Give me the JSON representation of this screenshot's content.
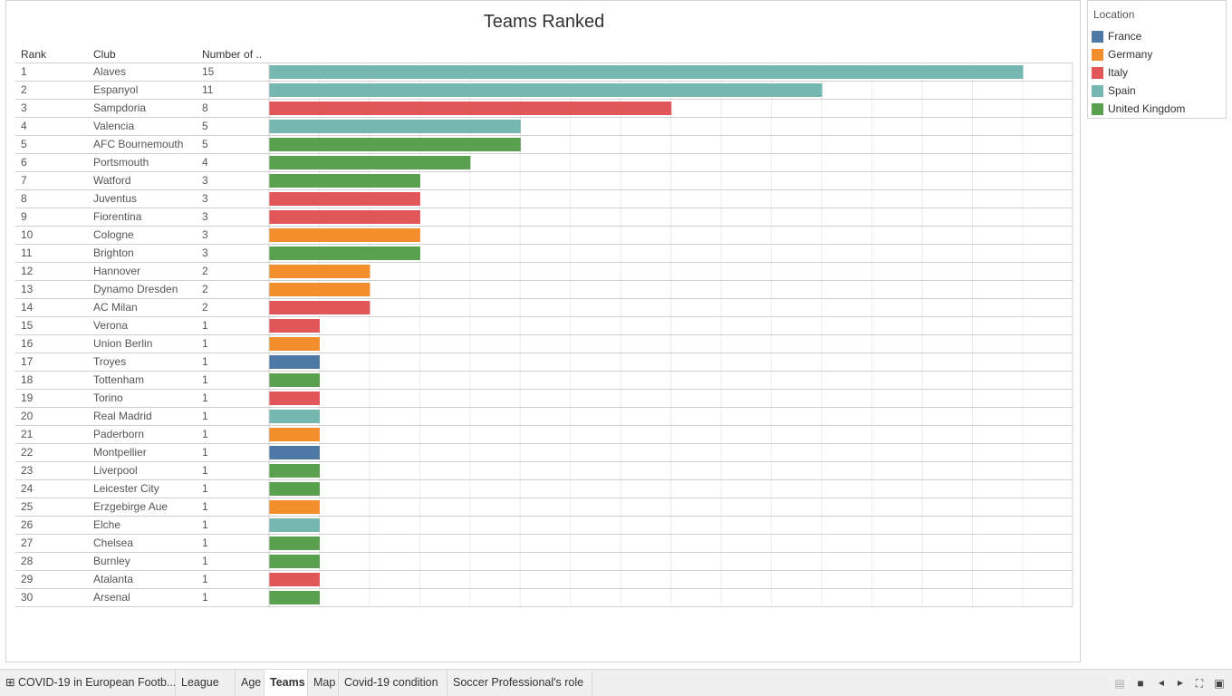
{
  "chart_data": {
    "type": "bar",
    "title": "Teams Ranked",
    "columns": [
      "Rank",
      "Club",
      "Number of .."
    ],
    "xlim": [
      0,
      15
    ],
    "grid": true,
    "legend": {
      "title": "Location",
      "placement": "right",
      "entries": [
        {
          "name": "France",
          "color": "#4e79a7"
        },
        {
          "name": "Germany",
          "color": "#f28e2b"
        },
        {
          "name": "Italy",
          "color": "#e15759"
        },
        {
          "name": "Spain",
          "color": "#76b7b2"
        },
        {
          "name": "United Kingdom",
          "color": "#59a14f"
        }
      ]
    },
    "rows": [
      {
        "rank": "1",
        "club": "Alaves",
        "value": 15,
        "location": "Spain"
      },
      {
        "rank": "2",
        "club": "Espanyol",
        "value": 11,
        "location": "Spain"
      },
      {
        "rank": "3",
        "club": "Sampdoria",
        "value": 8,
        "location": "Italy"
      },
      {
        "rank": "4",
        "club": "Valencia",
        "value": 5,
        "location": "Spain"
      },
      {
        "rank": "5",
        "club": "AFC Bournemouth",
        "value": 5,
        "location": "United Kingdom"
      },
      {
        "rank": "6",
        "club": "Portsmouth",
        "value": 4,
        "location": "United Kingdom"
      },
      {
        "rank": "7",
        "club": "Watford",
        "value": 3,
        "location": "United Kingdom"
      },
      {
        "rank": "8",
        "club": "Juventus",
        "value": 3,
        "location": "Italy"
      },
      {
        "rank": "9",
        "club": "Fiorentina",
        "value": 3,
        "location": "Italy"
      },
      {
        "rank": "10",
        "club": "Cologne",
        "value": 3,
        "location": "Germany"
      },
      {
        "rank": "11",
        "club": "Brighton",
        "value": 3,
        "location": "United Kingdom"
      },
      {
        "rank": "12",
        "club": "Hannover",
        "value": 2,
        "location": "Germany"
      },
      {
        "rank": "13",
        "club": "Dynamo Dresden",
        "value": 2,
        "location": "Germany"
      },
      {
        "rank": "14",
        "club": "AC Milan",
        "value": 2,
        "location": "Italy"
      },
      {
        "rank": "15",
        "club": "Verona",
        "value": 1,
        "location": "Italy"
      },
      {
        "rank": "16",
        "club": "Union Berlin",
        "value": 1,
        "location": "Germany"
      },
      {
        "rank": "17",
        "club": "Troyes",
        "value": 1,
        "location": "France"
      },
      {
        "rank": "18",
        "club": "Tottenham",
        "value": 1,
        "location": "United Kingdom"
      },
      {
        "rank": "19",
        "club": "Torino",
        "value": 1,
        "location": "Italy"
      },
      {
        "rank": "20",
        "club": "Real Madrid",
        "value": 1,
        "location": "Spain"
      },
      {
        "rank": "21",
        "club": "Paderborn",
        "value": 1,
        "location": "Germany"
      },
      {
        "rank": "22",
        "club": "Montpellier",
        "value": 1,
        "location": "France"
      },
      {
        "rank": "23",
        "club": "Liverpool",
        "value": 1,
        "location": "United Kingdom"
      },
      {
        "rank": "24",
        "club": "Leicester City",
        "value": 1,
        "location": "United Kingdom"
      },
      {
        "rank": "25",
        "club": "Erzgebirge Aue",
        "value": 1,
        "location": "Germany"
      },
      {
        "rank": "26",
        "club": "Elche",
        "value": 1,
        "location": "Spain"
      },
      {
        "rank": "27",
        "club": "Chelsea",
        "value": 1,
        "location": "United Kingdom"
      },
      {
        "rank": "28",
        "club": "Burnley",
        "value": 1,
        "location": "United Kingdom"
      },
      {
        "rank": "29",
        "club": "Atalanta",
        "value": 1,
        "location": "Italy"
      },
      {
        "rank": "30",
        "club": "Arsenal",
        "value": 1,
        "location": "United Kingdom"
      }
    ]
  },
  "tabs": [
    {
      "label": "COVID-19 in European Footb...",
      "icon": "grid-icon",
      "active": false
    },
    {
      "label": "League",
      "active": false
    },
    {
      "label": "Age",
      "active": false
    },
    {
      "label": "Teams",
      "active": true
    },
    {
      "label": "Map",
      "active": false
    },
    {
      "label": "Covid-19 condition",
      "active": false
    },
    {
      "label": "Soccer Professional's role",
      "active": false
    }
  ],
  "controls": [
    "filmstrip-view-icon",
    "tabs-view-icon",
    "previous-sheet-icon",
    "next-sheet-icon",
    "fit-icon",
    "presentation-mode-icon"
  ]
}
